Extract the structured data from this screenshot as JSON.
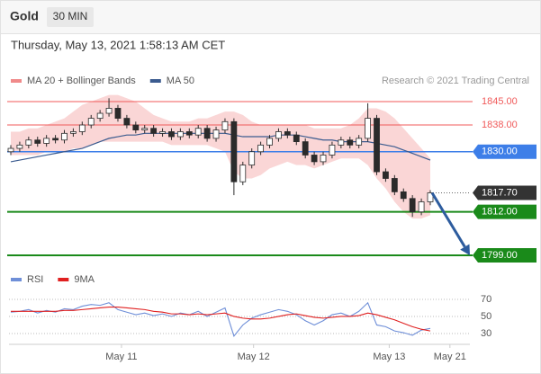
{
  "header": {
    "symbol": "Gold",
    "interval": "30 MIN",
    "datetime": "Thursday, May 13, 2021 1:58:13 AM CET"
  },
  "chart_data": [
    {
      "type": "candlestick",
      "source": "Research © 2021 Trading Central",
      "color": "#2b2b2b",
      "open": [
        1830,
        1831,
        1832,
        1833.5,
        1832.5,
        1834,
        1833.5,
        1835.5,
        1836,
        1838,
        1840,
        1841.5,
        1843,
        1840,
        1838,
        1836.5,
        1837,
        1835.5,
        1836,
        1834.5,
        1836,
        1835,
        1837,
        1834,
        1836.5,
        1839,
        1821,
        1826,
        1830,
        1832,
        1834,
        1836,
        1835,
        1833,
        1829,
        1827,
        1829,
        1832,
        1833.5,
        1832,
        1834,
        1840,
        1824,
        1822,
        1818,
        1816,
        1812,
        1815
      ],
      "high": [
        1832,
        1833,
        1834.5,
        1834.5,
        1835,
        1835,
        1836.5,
        1837,
        1839,
        1841,
        1842.5,
        1846,
        1844,
        1841,
        1839,
        1838,
        1838,
        1837,
        1837,
        1837,
        1837,
        1838,
        1838,
        1837.5,
        1840,
        1840,
        1827,
        1831,
        1833,
        1835,
        1837,
        1837,
        1836,
        1834,
        1830,
        1830,
        1833,
        1834.5,
        1834.5,
        1835,
        1844.5,
        1841,
        1825,
        1823,
        1819,
        1817,
        1816,
        1818.5
      ],
      "low": [
        1829,
        1830,
        1831,
        1831.5,
        1831.5,
        1832.5,
        1832.5,
        1834.5,
        1835,
        1837,
        1839,
        1840.5,
        1839,
        1837,
        1835.5,
        1835.5,
        1834.5,
        1834.5,
        1833.5,
        1833.5,
        1834,
        1834,
        1833,
        1833,
        1835.5,
        1817,
        1820,
        1825,
        1829,
        1831,
        1833,
        1834,
        1832,
        1828,
        1826,
        1826,
        1828,
        1831,
        1831,
        1831,
        1833,
        1823,
        1821,
        1817,
        1815,
        1810.5,
        1811,
        1814
      ],
      "close": [
        1831,
        1832,
        1833.5,
        1832.5,
        1834,
        1833.5,
        1835.5,
        1836,
        1838,
        1840,
        1841.5,
        1843,
        1840,
        1838,
        1836.5,
        1837,
        1835.5,
        1836,
        1834.5,
        1836,
        1835,
        1837,
        1834,
        1836.5,
        1839,
        1821,
        1826,
        1830,
        1832,
        1834,
        1836,
        1835,
        1833,
        1829,
        1827,
        1829,
        1832,
        1833.5,
        1832,
        1834,
        1840,
        1824,
        1822,
        1818,
        1816,
        1812,
        1815,
        1817.7
      ],
      "series": [
        {
          "name": "MA 20 + Bollinger Bands",
          "color": "#f08a8a",
          "upper": [
            1836,
            1836,
            1837,
            1837,
            1838,
            1839,
            1840,
            1842,
            1844,
            1845,
            1846,
            1847,
            1847,
            1846,
            1845,
            1843,
            1841,
            1840,
            1839,
            1839,
            1839,
            1840,
            1840,
            1841,
            1842,
            1842,
            1841,
            1839,
            1838,
            1838,
            1838,
            1838,
            1838,
            1838,
            1837,
            1837,
            1837,
            1837,
            1838,
            1840,
            1843,
            1843,
            1842,
            1840,
            1837,
            1834,
            1831,
            1828
          ],
          "lower": [
            1829,
            1829,
            1829,
            1829,
            1830,
            1830,
            1830,
            1831,
            1831,
            1832,
            1833,
            1833,
            1833,
            1833,
            1833,
            1833,
            1833,
            1833,
            1832,
            1832,
            1832,
            1832,
            1832,
            1831,
            1830,
            1824,
            1822,
            1822,
            1823,
            1825,
            1826,
            1827,
            1826,
            1826,
            1825,
            1826,
            1827,
            1828,
            1828,
            1828,
            1826,
            1822,
            1819,
            1815,
            1812,
            1810,
            1810,
            1811
          ]
        },
        {
          "name": "MA 50",
          "color": "#3b5b8f",
          "values": [
            1827,
            1827.5,
            1828,
            1828.5,
            1829,
            1829.5,
            1830,
            1830.5,
            1831,
            1832,
            1833,
            1834,
            1834.5,
            1835,
            1835,
            1835.5,
            1835.5,
            1835.5,
            1835.5,
            1835.5,
            1835.5,
            1835.5,
            1835.5,
            1835.5,
            1835.5,
            1835,
            1834.5,
            1834.5,
            1834.5,
            1834.5,
            1835,
            1835,
            1835,
            1834.5,
            1834,
            1833.5,
            1833.5,
            1833,
            1833,
            1833,
            1833,
            1832.5,
            1832,
            1831.5,
            1830.5,
            1829.5,
            1828.5,
            1827.5
          ]
        }
      ],
      "levels": [
        {
          "value": 1845,
          "label": "1845.00",
          "color": "#f05a5a",
          "box": false
        },
        {
          "value": 1838,
          "label": "1838.00",
          "color": "#f05a5a",
          "box": false
        },
        {
          "value": 1830,
          "label": "1830.00",
          "color": "#3d7ee8",
          "box": true
        },
        {
          "value": 1817.7,
          "label": "1817.70",
          "color": "#333333",
          "box": true
        },
        {
          "value": 1812,
          "label": "1812.00",
          "color": "#1a8a1a",
          "box": true
        },
        {
          "value": 1799,
          "label": "1799.00",
          "color": "#1a8a1a",
          "box": true
        }
      ],
      "projection_color": "#2d5c9e",
      "xlim": [
        0,
        47
      ],
      "ylim": [
        1796.3,
        1848.5
      ]
    },
    {
      "type": "line",
      "series": [
        {
          "name": "RSI",
          "color": "#6f8fd8",
          "values": [
            55,
            56,
            58,
            54,
            57,
            55,
            59,
            58,
            62,
            64,
            63,
            66,
            58,
            55,
            52,
            54,
            51,
            53,
            50,
            54,
            52,
            56,
            50,
            55,
            60,
            27,
            40,
            48,
            52,
            55,
            58,
            56,
            52,
            45,
            40,
            45,
            52,
            54,
            50,
            56,
            66,
            40,
            38,
            33,
            31,
            28,
            34,
            36
          ]
        },
        {
          "name": "9MA",
          "color": "#e02020",
          "values": [
            56,
            56,
            56,
            56,
            56,
            56,
            57,
            57,
            58,
            59,
            60,
            61,
            61,
            60,
            59,
            58,
            56,
            55,
            53,
            53,
            52,
            53,
            52,
            53,
            54,
            50,
            48,
            47,
            47,
            48,
            50,
            52,
            53,
            51,
            49,
            48,
            49,
            50,
            50,
            51,
            54,
            52,
            49,
            46,
            42,
            38,
            35,
            33
          ]
        }
      ],
      "xlim": [
        0,
        47
      ],
      "ylim": [
        20.5,
        78.4
      ],
      "yticks": [
        70,
        50,
        30
      ],
      "xticks": [
        {
          "value": 12.4,
          "label": "May 11"
        },
        {
          "value": 27.2,
          "label": "May 12"
        },
        {
          "value": 42.4,
          "label": "May 13"
        },
        {
          "value": 49.2,
          "label": "May 21"
        }
      ]
    }
  ]
}
